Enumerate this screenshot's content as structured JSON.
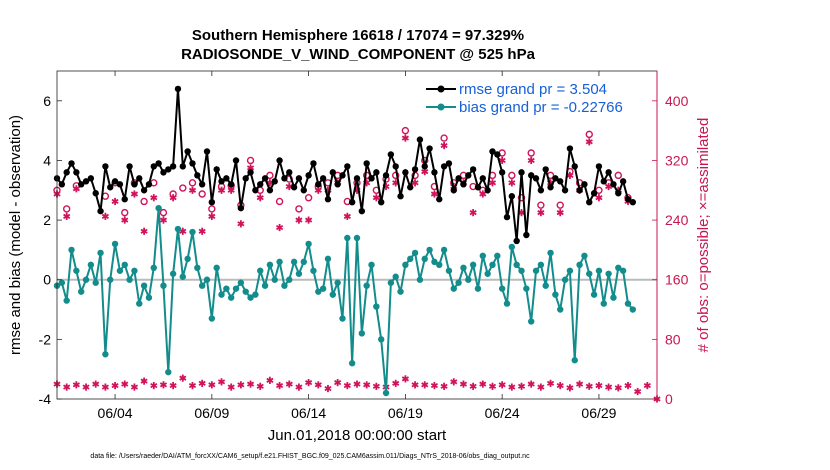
{
  "chart_data": {
    "type": "line",
    "title_line1": "Southern Hemisphere 16618 / 17074 = 97.329%",
    "title_line2": "RADIOSONDE_V_WIND_COMPONENT @ 525 hPa",
    "xlabel": "Jun.01,2018 00:00:00 start",
    "ylabel_left": "rmse and bias (model - observation)",
    "ylabel_right": "# of obs: o=possible; ×=assimilated",
    "footnote": "data file: /Users/raeder/DAI/ATM_forcXX/CAM6_setup/f.e21.FHIST_BGC.f09_025.CAM6assim.011/Diags_NTrS_2018-06/obs_diag_output.nc",
    "x_ticks": [
      {
        "value": 4,
        "label": "06/04"
      },
      {
        "value": 9,
        "label": "06/09"
      },
      {
        "value": 14,
        "label": "06/14"
      },
      {
        "value": 19,
        "label": "06/19"
      },
      {
        "value": 24,
        "label": "06/24"
      },
      {
        "value": 29,
        "label": "06/29"
      }
    ],
    "left_ticks": [
      {
        "value": 6,
        "label": "6"
      },
      {
        "value": 4,
        "label": "4"
      },
      {
        "value": 2,
        "label": "2"
      },
      {
        "value": 0,
        "label": "0"
      },
      {
        "value": -2,
        "label": "-2"
      },
      {
        "value": -4,
        "label": "-4"
      }
    ],
    "right_ticks": [
      {
        "value": 400,
        "label": "400"
      },
      {
        "value": 320,
        "label": "320"
      },
      {
        "value": 240,
        "label": "240"
      },
      {
        "value": 160,
        "label": "160"
      },
      {
        "value": 80,
        "label": "80"
      },
      {
        "value": 0,
        "label": "0"
      }
    ],
    "xlim": [
      1,
      32
    ],
    "ylim_left": [
      -4,
      7
    ],
    "ylim_right": [
      0,
      440
    ],
    "zero_line": 0,
    "legend": [
      {
        "label": "rmse grand pr = 3.504",
        "color": "#000000",
        "marker": "dot"
      },
      {
        "label": "bias grand pr = -0.22766",
        "color": "#138c8c",
        "marker": "dot"
      }
    ],
    "colors": {
      "rmse": "#000000",
      "bias": "#138c8c",
      "obs": "#d0135a",
      "zero_line": "#bbbbbb",
      "right_axis": "#c8174f",
      "legend_text": "#1560d8"
    },
    "series": [
      {
        "name": "rmse",
        "color": "#000000",
        "x": [
          1.0,
          1.25,
          1.5,
          1.75,
          2.0,
          2.25,
          2.5,
          2.75,
          3.0,
          3.25,
          3.5,
          3.75,
          4.0,
          4.25,
          4.5,
          4.75,
          5.0,
          5.25,
          5.5,
          5.75,
          6.0,
          6.25,
          6.5,
          6.75,
          7.0,
          7.25,
          7.5,
          7.75,
          8.0,
          8.25,
          8.5,
          8.75,
          9.0,
          9.25,
          9.5,
          9.75,
          10.0,
          10.25,
          10.5,
          10.75,
          11.0,
          11.25,
          11.5,
          11.75,
          12.0,
          12.25,
          12.5,
          12.75,
          13.0,
          13.25,
          13.5,
          13.75,
          14.0,
          14.25,
          14.5,
          14.75,
          15.0,
          15.25,
          15.5,
          15.75,
          16.0,
          16.25,
          16.5,
          16.75,
          17.0,
          17.25,
          17.5,
          17.75,
          18.0,
          18.25,
          18.5,
          18.75,
          19.0,
          19.25,
          19.5,
          19.75,
          20.0,
          20.25,
          20.5,
          20.75,
          21.0,
          21.25,
          21.5,
          21.75,
          22.0,
          22.25,
          22.5,
          22.75,
          23.0,
          23.25,
          23.5,
          23.75,
          24.0,
          24.25,
          24.5,
          24.75,
          25.0,
          25.25,
          25.5,
          25.75,
          26.0,
          26.25,
          26.5,
          26.75,
          27.0,
          27.25,
          27.5,
          27.75,
          28.0,
          28.25,
          28.5,
          28.75,
          29.0,
          29.25,
          29.5,
          29.75,
          30.0,
          30.25,
          30.5,
          30.75
        ],
        "values": [
          3.4,
          3.2,
          3.6,
          3.9,
          3.6,
          3.2,
          3.3,
          3.4,
          2.9,
          2.3,
          3.8,
          3.1,
          3.3,
          3.2,
          2.7,
          3.8,
          3.2,
          3.4,
          3.0,
          3.2,
          3.8,
          3.9,
          3.6,
          3.7,
          3.8,
          6.4,
          3.8,
          4.3,
          3.9,
          3.5,
          3.2,
          4.3,
          2.6,
          3.7,
          3.3,
          3.4,
          3.2,
          4.0,
          2.4,
          3.4,
          3.6,
          3.0,
          3.2,
          3.4,
          3.0,
          3.3,
          4.0,
          3.4,
          3.6,
          3.1,
          3.4,
          3.0,
          3.5,
          3.9,
          3.2,
          3.4,
          2.7,
          3.6,
          3.2,
          3.5,
          3.8,
          2.6,
          3.4,
          2.3,
          3.9,
          3.4,
          3.6,
          2.6,
          3.5,
          4.2,
          3.8,
          2.8,
          3.6,
          3.1,
          3.7,
          4.7,
          3.8,
          4.4,
          3.6,
          2.7,
          3.8,
          3.9,
          3.0,
          3.4,
          3.2,
          3.5,
          3.7,
          3.1,
          3.4,
          3.0,
          4.3,
          4.2,
          3.6,
          2.1,
          2.8,
          1.3,
          3.6,
          1.5,
          3.5,
          3.4,
          3.0,
          3.7,
          3.1,
          3.4,
          3.3,
          3.0,
          4.4,
          3.8,
          3.0,
          3.2,
          2.6,
          2.9,
          3.8,
          3.3,
          3.6,
          3.2,
          2.9,
          3.3,
          2.7,
          2.6
        ]
      },
      {
        "name": "bias",
        "color": "#138c8c",
        "x": [
          1.0,
          1.25,
          1.5,
          1.75,
          2.0,
          2.25,
          2.5,
          2.75,
          3.0,
          3.25,
          3.5,
          3.75,
          4.0,
          4.25,
          4.5,
          4.75,
          5.0,
          5.25,
          5.5,
          5.75,
          6.0,
          6.25,
          6.5,
          6.75,
          7.0,
          7.25,
          7.5,
          7.75,
          8.0,
          8.25,
          8.5,
          8.75,
          9.0,
          9.25,
          9.5,
          9.75,
          10.0,
          10.25,
          10.5,
          10.75,
          11.0,
          11.25,
          11.5,
          11.75,
          12.0,
          12.25,
          12.5,
          12.75,
          13.0,
          13.25,
          13.5,
          13.75,
          14.0,
          14.25,
          14.5,
          14.75,
          15.0,
          15.25,
          15.5,
          15.75,
          16.0,
          16.25,
          16.5,
          16.75,
          17.0,
          17.25,
          17.5,
          17.75,
          18.0,
          18.25,
          18.5,
          18.75,
          19.0,
          19.25,
          19.5,
          19.75,
          20.0,
          20.25,
          20.5,
          20.75,
          21.0,
          21.25,
          21.5,
          21.75,
          22.0,
          22.25,
          22.5,
          22.75,
          23.0,
          23.25,
          23.5,
          23.75,
          24.0,
          24.25,
          24.5,
          24.75,
          25.0,
          25.25,
          25.5,
          25.75,
          26.0,
          26.25,
          26.5,
          26.75,
          27.0,
          27.25,
          27.5,
          27.75,
          28.0,
          28.25,
          28.5,
          28.75,
          29.0,
          29.25,
          29.5,
          29.75,
          30.0,
          30.25,
          30.5,
          30.75
        ],
        "values": [
          -0.2,
          -0.1,
          -0.7,
          1.0,
          0.3,
          -0.4,
          0.0,
          0.5,
          -0.1,
          0.9,
          -2.5,
          0.0,
          1.2,
          0.3,
          0.5,
          0.0,
          0.3,
          -0.8,
          -0.2,
          -0.6,
          0.4,
          2.4,
          -0.2,
          -3.1,
          0.2,
          1.7,
          0.1,
          0.7,
          1.6,
          0.4,
          -0.2,
          0.0,
          -1.3,
          0.4,
          -0.5,
          -0.3,
          -0.6,
          -0.3,
          -0.1,
          -0.4,
          -0.6,
          -0.5,
          0.3,
          -0.2,
          0.5,
          0.0,
          0.6,
          -0.2,
          0.0,
          0.6,
          0.2,
          0.6,
          1.2,
          0.3,
          -0.4,
          -0.3,
          0.7,
          -0.5,
          -0.1,
          -1.3,
          1.4,
          -2.8,
          1.4,
          -1.8,
          -0.2,
          0.5,
          -0.9,
          -2.0,
          -3.8,
          -0.1,
          0.1,
          -0.4,
          0.5,
          0.7,
          0.9,
          0.0,
          0.7,
          1.0,
          0.6,
          0.5,
          1.0,
          0.3,
          -0.3,
          -0.1,
          0.4,
          0.0,
          0.5,
          -0.3,
          0.8,
          0.2,
          0.5,
          0.8,
          -0.3,
          -0.8,
          1.1,
          0.5,
          0.3,
          -0.3,
          -1.4,
          0.3,
          0.5,
          -0.2,
          0.9,
          -0.5,
          -1.0,
          0.0,
          0.3,
          -2.7,
          0.5,
          0.8,
          0.2,
          -0.5,
          0.3,
          -0.8,
          0.2,
          -0.6,
          0.4,
          0.3,
          -0.8,
          -1.0
        ]
      },
      {
        "name": "obs possible",
        "color": "#d0135a",
        "marker": "circle",
        "x": [
          1.0,
          1.5,
          2.0,
          3.5,
          4.0,
          4.5,
          5.0,
          5.5,
          6.0,
          6.5,
          7.0,
          7.5,
          8.0,
          8.5,
          9.0,
          9.5,
          10.0,
          10.5,
          11.0,
          11.5,
          12.0,
          12.5,
          13.0,
          13.5,
          14.0,
          14.5,
          15.0,
          15.5,
          16.0,
          16.5,
          17.0,
          17.5,
          18.0,
          18.5,
          19.0,
          19.5,
          20.0,
          20.5,
          21.0,
          21.5,
          22.0,
          22.5,
          23.0,
          23.5,
          24.0,
          24.5,
          25.0,
          25.5,
          26.0,
          26.5,
          27.0,
          27.5,
          28.0,
          28.5,
          29.0,
          29.5,
          30.0,
          30.5
        ],
        "values": [
          280,
          255,
          286,
          272,
          290,
          250,
          290,
          265,
          290,
          250,
          275,
          283,
          290,
          275,
          255,
          285,
          286,
          260,
          320,
          280,
          300,
          265,
          295,
          255,
          270,
          285,
          290,
          300,
          265,
          290,
          300,
          280,
          295,
          300,
          360,
          300,
          320,
          285,
          350,
          290,
          300,
          285,
          280,
          300,
          330,
          300,
          270,
          330,
          260,
          300,
          260,
          305,
          290,
          355,
          280,
          290,
          300,
          270
        ]
      },
      {
        "name": "obs assimilated",
        "color": "#d0135a",
        "marker": "asterisk",
        "x": [
          1.0,
          1.5,
          2.0,
          3.5,
          4.0,
          4.5,
          5.0,
          5.5,
          6.0,
          6.5,
          7.0,
          7.5,
          8.0,
          8.5,
          9.0,
          9.5,
          10.0,
          10.5,
          11.0,
          11.5,
          12.0,
          12.5,
          13.0,
          13.5,
          14.0,
          14.5,
          15.0,
          15.5,
          16.0,
          16.5,
          17.0,
          17.5,
          18.0,
          18.5,
          19.0,
          19.5,
          20.0,
          20.5,
          21.0,
          21.5,
          22.0,
          22.5,
          23.0,
          23.5,
          24.0,
          24.5,
          25.0,
          25.5,
          26.0,
          26.5,
          27.0,
          27.5,
          28.0,
          28.5,
          29.0,
          29.5,
          30.0,
          30.5
        ],
        "values": [
          275,
          245,
          282,
          245,
          265,
          240,
          275,
          225,
          270,
          240,
          270,
          225,
          280,
          225,
          245,
          280,
          280,
          235,
          310,
          270,
          290,
          230,
          285,
          240,
          240,
          280,
          280,
          290,
          245,
          280,
          290,
          270,
          285,
          290,
          350,
          290,
          305,
          275,
          340,
          285,
          290,
          250,
          275,
          290,
          320,
          290,
          250,
          320,
          250,
          290,
          250,
          300,
          280,
          345,
          270,
          285,
          280,
          265
        ]
      },
      {
        "name": "obs assimilated (bottom)",
        "color": "#d0135a",
        "marker": "asterisk",
        "x": [
          1.0,
          1.5,
          2.0,
          2.5,
          3.0,
          3.5,
          4.0,
          4.5,
          5.0,
          5.5,
          6.0,
          6.5,
          7.0,
          7.5,
          8.0,
          8.5,
          9.0,
          9.5,
          10.0,
          10.5,
          11.0,
          11.5,
          12.0,
          12.5,
          13.0,
          13.5,
          14.0,
          14.5,
          15.0,
          15.5,
          16.0,
          16.5,
          17.0,
          17.5,
          18.0,
          18.5,
          19.0,
          19.5,
          20.0,
          20.5,
          21.0,
          21.5,
          22.0,
          22.5,
          23.0,
          23.5,
          24.0,
          24.5,
          25.0,
          25.5,
          26.0,
          26.5,
          27.0,
          27.5,
          28.0,
          28.5,
          29.0,
          29.5,
          30.0,
          30.5,
          31.0,
          31.5,
          32.0
        ],
        "values": [
          20,
          16,
          19,
          16,
          20,
          16,
          18,
          20,
          16,
          24,
          18,
          19,
          18,
          28,
          18,
          21,
          19,
          23,
          16,
          19,
          20,
          17,
          25,
          18,
          20,
          16,
          22,
          19,
          14,
          22,
          18,
          20,
          19,
          17,
          16,
          21,
          27,
          19,
          19,
          18,
          17,
          23,
          20,
          17,
          20,
          17,
          19,
          16,
          17,
          20,
          16,
          21,
          18,
          15,
          20,
          17,
          18,
          16,
          15,
          18,
          10,
          18,
          0
        ]
      }
    ]
  }
}
